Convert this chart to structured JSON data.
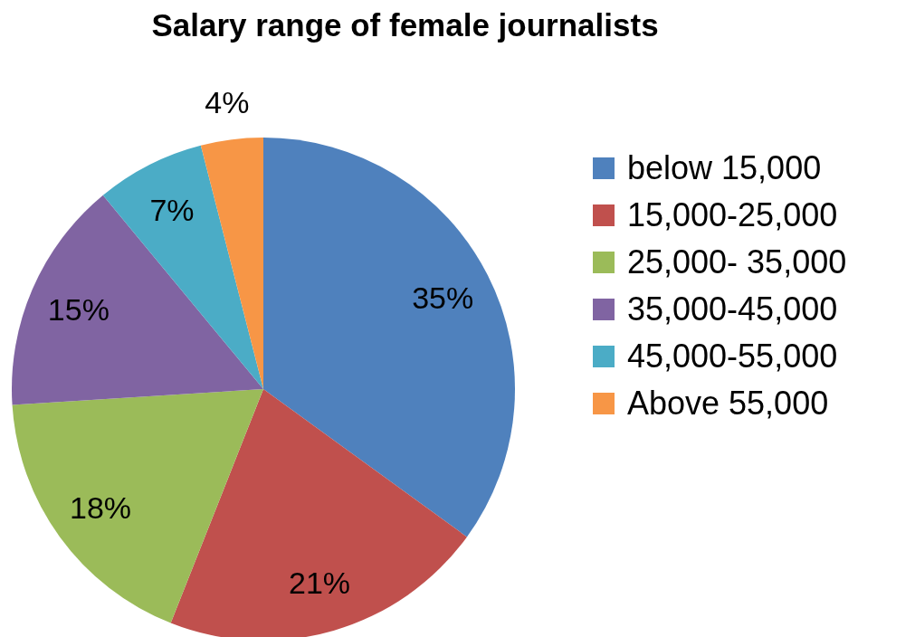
{
  "chart_data": {
    "type": "pie",
    "title": "Salary range of female journalists",
    "categories": [
      "below 15,000",
      "15,000-25,000",
      "25,000- 35,000",
      "35,000-45,000",
      "45,000-55,000",
      "Above 55,000"
    ],
    "values": [
      35,
      21,
      18,
      15,
      7,
      4
    ],
    "value_labels": [
      "35%",
      "21%",
      "18%",
      "15%",
      "7%",
      "4%"
    ],
    "colors": [
      "#4f81bd",
      "#c0504d",
      "#9bbb59",
      "#8064a2",
      "#4bacc6",
      "#f79646"
    ],
    "legend": "right"
  }
}
